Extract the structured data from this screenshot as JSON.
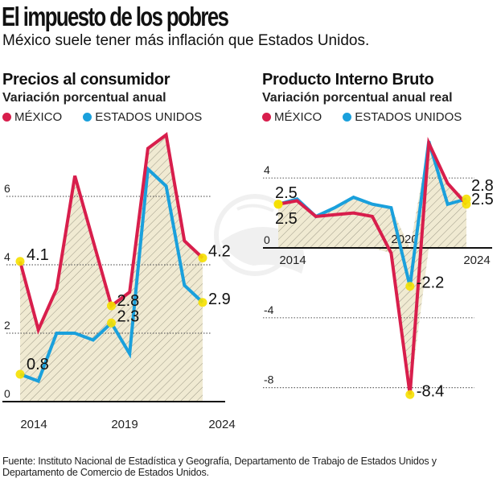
{
  "header": {
    "title": "El impuesto de los pobres",
    "subtitle": "México suele tener más inflación que Estados Unidos."
  },
  "legend": {
    "mexico": "MÉXICO",
    "usa": "ESTADOS UNIDOS"
  },
  "colors": {
    "mexico": "#d81e4c",
    "usa": "#1aa0dc",
    "fill": "#f0ead2",
    "marker": "#f5e000",
    "axis": "#111111",
    "grid": "#666666"
  },
  "source": "Fuente: Instituto Nacional de Estadística y Geografía, Departamento de Trabajo de Estados Unidos y Departamento de Comercio de Estados Unidos.",
  "chart_data": [
    {
      "type": "line",
      "title": "Precios al consumidor",
      "subtitle": "Variación porcentual anual",
      "x": [
        2013,
        2014,
        2015,
        2016,
        2017,
        2018,
        2019,
        2020,
        2021,
        2022,
        2023
      ],
      "series": [
        {
          "name": "MÉXICO",
          "values": [
            4.1,
            2.1,
            3.3,
            6.6,
            4.7,
            2.8,
            3.2,
            7.4,
            7.8,
            4.7,
            4.2
          ]
        },
        {
          "name": "ESTADOS UNIDOS",
          "values": [
            0.8,
            0.6,
            2.0,
            2.0,
            1.8,
            2.3,
            1.4,
            6.8,
            6.3,
            3.4,
            2.9
          ]
        }
      ],
      "labeled_points": [
        {
          "series": "MÉXICO",
          "x": 2013,
          "label": "4.1"
        },
        {
          "series": "MÉXICO",
          "x": 2018,
          "label": "2.8"
        },
        {
          "series": "MÉXICO",
          "x": 2023,
          "label": "4.2"
        },
        {
          "series": "ESTADOS UNIDOS",
          "x": 2013,
          "label": "0.8"
        },
        {
          "series": "ESTADOS UNIDOS",
          "x": 2018,
          "label": "2.3"
        },
        {
          "series": "ESTADOS UNIDOS",
          "x": 2023,
          "label": "2.9"
        }
      ],
      "xticks": [
        "2014",
        "2019",
        "2024"
      ],
      "yticks": [
        "0",
        "2",
        "4",
        "6"
      ],
      "ylim": [
        0,
        8.2
      ],
      "grid": true,
      "xlabel": "",
      "ylabel": ""
    },
    {
      "type": "line",
      "title": "Producto Interno Bruto",
      "subtitle": "Variación porcentual anual real",
      "x": [
        2013,
        2014,
        2015,
        2016,
        2017,
        2018,
        2019,
        2020,
        2021,
        2022,
        2023
      ],
      "series": [
        {
          "name": "MÉXICO",
          "values": [
            2.5,
            2.7,
            1.8,
            1.9,
            2.0,
            1.8,
            -0.3,
            -8.4,
            6.0,
            3.7,
            2.5
          ]
        },
        {
          "name": "ESTADOS UNIDOS",
          "values": [
            2.5,
            2.8,
            1.8,
            2.3,
            2.9,
            2.5,
            2.3,
            -2.2,
            6.1,
            2.5,
            2.8
          ]
        }
      ],
      "labeled_points": [
        {
          "series": "ESTADOS UNIDOS",
          "x": 2013,
          "label": "2.5"
        },
        {
          "series": "MÉXICO",
          "x": 2013,
          "label": "2.5"
        },
        {
          "series": "ESTADOS UNIDOS",
          "x": 2020,
          "label": "-2.2"
        },
        {
          "series": "MÉXICO",
          "x": 2020,
          "label": "-8.4"
        },
        {
          "series": "ESTADOS UNIDOS",
          "x": 2023,
          "label": "2.8"
        },
        {
          "series": "MÉXICO",
          "x": 2023,
          "label": "2.5"
        }
      ],
      "xticks": [
        "2014",
        "2020",
        "2024"
      ],
      "yticks": [
        "4",
        "0",
        "-4",
        "-8"
      ],
      "ylim": [
        -8.6,
        6.4
      ],
      "grid": true,
      "xlabel": "",
      "ylabel": ""
    }
  ]
}
